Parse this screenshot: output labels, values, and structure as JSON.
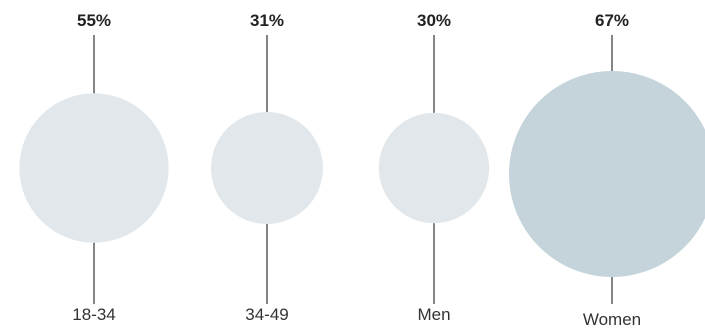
{
  "chart_data": {
    "type": "bubble",
    "categories": [
      "18-34",
      "34-49",
      "Men",
      "Women"
    ],
    "values": [
      55,
      31,
      30,
      67
    ],
    "value_labels": [
      "55%",
      "31%",
      "30%",
      "67%"
    ],
    "colors": [
      "#e1e7eb",
      "#e1e7eb",
      "#e1e7eb",
      "#c5d3da"
    ]
  }
}
